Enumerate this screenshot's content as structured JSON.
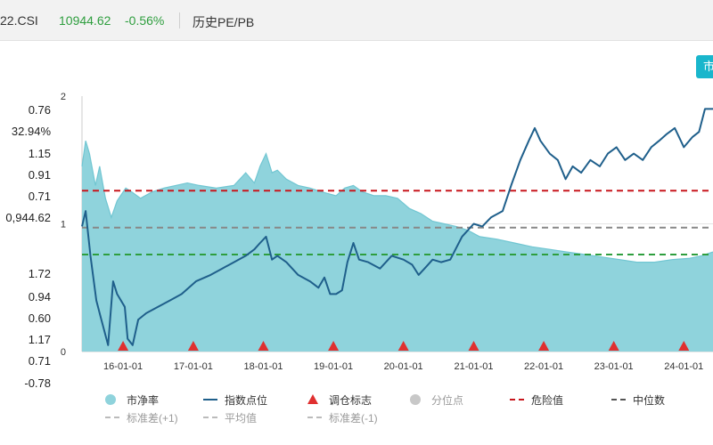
{
  "header": {
    "code": "22.CSI",
    "value": "10944.62",
    "change": "-0.56%",
    "title": "历史PE/PB"
  },
  "corner_button": {
    "label": "市"
  },
  "stats": [
    "0.76",
    "32.94%",
    "1.15",
    "0.91",
    "0.71",
    "0,944.62",
    "1.72",
    "0.94",
    "0.60",
    "1.17",
    "0.71",
    "-0.78"
  ],
  "colors": {
    "pb_fill": "#8fd3dc",
    "pb_line": "#71c6d2",
    "index_line": "#1f5f8b",
    "danger": "#c8161d",
    "median": "#888888",
    "std_minus": "#2e9e3e",
    "marker": "#e03030",
    "positive": "#2e9e3e"
  },
  "legend": {
    "row1": [
      {
        "label": "市净率",
        "icon": "circle-icon",
        "color": "#8fd3dc"
      },
      {
        "label": "指数点位",
        "icon": "line-icon",
        "color": "#1f5f8b"
      },
      {
        "label": "调仓标志",
        "icon": "triangle-icon",
        "color": "#e03030"
      },
      {
        "label": "分位点",
        "icon": "circle-icon",
        "color": "#c8c8c8"
      },
      {
        "label": "危险值",
        "icon": "dashed-line-icon",
        "color": "#c8161d"
      },
      {
        "label": "中位数",
        "icon": "dashed-line-icon",
        "color": "#555555"
      }
    ],
    "row2": [
      {
        "label": "标准差(+1)",
        "icon": "dashed-line-icon",
        "color": "#bbbbbb"
      },
      {
        "label": "平均值",
        "icon": "dashed-line-icon",
        "color": "#bbbbbb"
      },
      {
        "label": "标准差(-1)",
        "icon": "dashed-line-icon",
        "color": "#bbbbbb"
      }
    ]
  },
  "chart_data": {
    "type": "area",
    "y_ticks": [
      "2",
      "1",
      "0"
    ],
    "ylim": [
      0,
      2
    ],
    "x_ticks": [
      "16-01-01",
      "17-01-01",
      "18-01-01",
      "19-01-01",
      "20-01-01",
      "21-01-01",
      "22-01-01",
      "23-01-01",
      "24-01-01"
    ],
    "xlim": [
      "2015-06-01",
      "2024-06-01"
    ],
    "marker_dates": [
      "2016-01-01",
      "2017-01-01",
      "2018-01-01",
      "2019-01-01",
      "2020-01-01",
      "2021-01-01",
      "2022-01-01",
      "2023-01-01",
      "2024-01-01"
    ],
    "reference_lines": [
      {
        "name": "危险值",
        "value": 1.26,
        "style": "dashed",
        "color": "#c8161d"
      },
      {
        "name": "中位数",
        "value": 0.97,
        "style": "dashed",
        "color": "#888888"
      },
      {
        "name": "标准差(-1)",
        "value": 0.76,
        "style": "dashed",
        "color": "#2e9e3e"
      }
    ],
    "series": [
      {
        "name": "市净率",
        "kind": "area",
        "x": [
          "2015-06-01",
          "2015-06-20",
          "2015-07-10",
          "2015-08-10",
          "2015-09-01",
          "2015-10-01",
          "2015-11-01",
          "2015-12-01",
          "2016-01-15",
          "2016-02-15",
          "2016-04-01",
          "2016-06-01",
          "2016-08-01",
          "2016-10-01",
          "2016-12-01",
          "2017-02-01",
          "2017-05-01",
          "2017-08-01",
          "2017-10-01",
          "2017-11-15",
          "2017-12-15",
          "2018-01-15",
          "2018-02-15",
          "2018-03-15",
          "2018-05-01",
          "2018-07-01",
          "2018-09-01",
          "2018-11-01",
          "2019-01-15",
          "2019-03-01",
          "2019-04-15",
          "2019-06-01",
          "2019-08-01",
          "2019-10-01",
          "2019-12-01",
          "2020-02-01",
          "2020-04-01",
          "2020-06-01",
          "2020-08-01",
          "2020-10-01",
          "2020-12-01",
          "2021-02-01",
          "2021-05-01",
          "2021-08-01",
          "2021-11-01",
          "2022-02-01",
          "2022-05-01",
          "2022-08-01",
          "2022-11-01",
          "2023-02-01",
          "2023-05-01",
          "2023-08-01",
          "2023-11-01",
          "2024-02-01",
          "2024-04-01",
          "2024-06-01"
        ],
        "values": [
          1.45,
          1.65,
          1.55,
          1.3,
          1.45,
          1.2,
          1.05,
          1.18,
          1.28,
          1.25,
          1.2,
          1.25,
          1.28,
          1.3,
          1.32,
          1.3,
          1.28,
          1.3,
          1.4,
          1.32,
          1.45,
          1.55,
          1.4,
          1.42,
          1.35,
          1.3,
          1.28,
          1.25,
          1.22,
          1.28,
          1.3,
          1.25,
          1.22,
          1.22,
          1.2,
          1.12,
          1.08,
          1.02,
          1.0,
          0.98,
          0.95,
          0.9,
          0.88,
          0.85,
          0.82,
          0.8,
          0.78,
          0.76,
          0.74,
          0.72,
          0.7,
          0.7,
          0.72,
          0.73,
          0.75,
          0.78
        ]
      },
      {
        "name": "指数点位",
        "kind": "line",
        "x": [
          "2015-06-01",
          "2015-06-20",
          "2015-07-15",
          "2015-08-15",
          "2015-09-10",
          "2015-10-15",
          "2015-11-10",
          "2015-12-01",
          "2016-01-10",
          "2016-01-25",
          "2016-02-20",
          "2016-03-20",
          "2016-05-01",
          "2016-07-01",
          "2016-09-01",
          "2016-11-01",
          "2017-01-15",
          "2017-04-01",
          "2017-06-01",
          "2017-08-01",
          "2017-10-01",
          "2017-11-15",
          "2017-12-15",
          "2018-01-15",
          "2018-02-15",
          "2018-03-15",
          "2018-05-01",
          "2018-07-01",
          "2018-09-01",
          "2018-10-15",
          "2018-11-15",
          "2018-12-15",
          "2019-01-15",
          "2019-02-15",
          "2019-03-15",
          "2019-04-15",
          "2019-05-15",
          "2019-07-01",
          "2019-09-01",
          "2019-11-01",
          "2020-01-01",
          "2020-02-15",
          "2020-03-20",
          "2020-04-20",
          "2020-06-01",
          "2020-07-15",
          "2020-09-01",
          "2020-11-01",
          "2021-01-01",
          "2021-02-15",
          "2021-04-01",
          "2021-06-01",
          "2021-07-15",
          "2021-09-01",
          "2021-10-15",
          "2021-11-15",
          "2021-12-15",
          "2022-02-01",
          "2022-03-15",
          "2022-04-25",
          "2022-06-01",
          "2022-07-15",
          "2022-09-01",
          "2022-10-20",
          "2022-12-01",
          "2023-01-15",
          "2023-03-01",
          "2023-04-15",
          "2023-06-01",
          "2023-07-15",
          "2023-08-25",
          "2023-10-01",
          "2023-11-15",
          "2024-01-01",
          "2024-02-15",
          "2024-03-20",
          "2024-04-20",
          "2024-06-01"
        ],
        "values": [
          0.98,
          1.1,
          0.75,
          0.4,
          0.25,
          0.05,
          0.55,
          0.45,
          0.35,
          0.1,
          0.05,
          0.25,
          0.3,
          0.35,
          0.4,
          0.45,
          0.55,
          0.6,
          0.65,
          0.7,
          0.75,
          0.8,
          0.85,
          0.9,
          0.72,
          0.75,
          0.7,
          0.6,
          0.55,
          0.5,
          0.58,
          0.45,
          0.45,
          0.48,
          0.7,
          0.85,
          0.72,
          0.7,
          0.65,
          0.75,
          0.72,
          0.68,
          0.6,
          0.65,
          0.72,
          0.7,
          0.72,
          0.9,
          1.0,
          0.98,
          1.05,
          1.1,
          1.3,
          1.5,
          1.65,
          1.75,
          1.65,
          1.55,
          1.5,
          1.35,
          1.45,
          1.4,
          1.5,
          1.45,
          1.55,
          1.6,
          1.5,
          1.55,
          1.5,
          1.6,
          1.65,
          1.7,
          1.75,
          1.6,
          1.68,
          1.72,
          1.9,
          1.9
        ]
      }
    ]
  }
}
